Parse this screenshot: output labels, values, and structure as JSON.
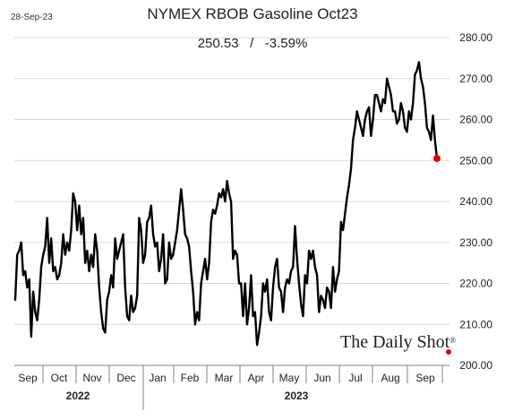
{
  "header": {
    "date_stamp": "28-Sep-23",
    "title": "NYMEX RBOB Gasoline Oct23",
    "last_value": "250.53",
    "separator": "/",
    "change": "-3.59%"
  },
  "brand": {
    "name": "The Daily Shot",
    "mark": "®"
  },
  "colors": {
    "line": "#000000",
    "last_point": "#e00000",
    "grid": "#d9d9d9",
    "axis": "#808080"
  },
  "chart_data": {
    "type": "line",
    "title": "NYMEX RBOB Gasoline Oct23",
    "xlabel": "",
    "ylabel": "",
    "ylim": [
      200,
      280
    ],
    "yticks": [
      "200.00",
      "210.00",
      "220.00",
      "230.00",
      "240.00",
      "250.00",
      "260.00",
      "270.00",
      "280.00"
    ],
    "y_axis_side": "right",
    "grid": true,
    "month_labels": [
      "Sep",
      "Oct",
      "Nov",
      "Dec",
      "Jan",
      "Feb",
      "Mar",
      "Apr",
      "May",
      "Jun",
      "Jul",
      "Aug",
      "Sep"
    ],
    "year_labels": [
      "2022",
      "2023"
    ],
    "last_point_marker": true,
    "series": [
      {
        "values": [
          216,
          227,
          228,
          230,
          222,
          223,
          219,
          221,
          207,
          218,
          213,
          211,
          216,
          224,
          227,
          229,
          236,
          225,
          231,
          223,
          224,
          221,
          222,
          225,
          232,
          227,
          230,
          228,
          233,
          242,
          240,
          233,
          239,
          232,
          236,
          225,
          228,
          223,
          227,
          224,
          232,
          228,
          219,
          213,
          209,
          208,
          216,
          218,
          222,
          219,
          231,
          226,
          228,
          230,
          232,
          219,
          212,
          211,
          217,
          213,
          214,
          217,
          236,
          233,
          225,
          227,
          235,
          236,
          239,
          232,
          229,
          230,
          223,
          226,
          232,
          220,
          221,
          230,
          226,
          227,
          230,
          233,
          238,
          243,
          238,
          232,
          231,
          229,
          223,
          218,
          210,
          213,
          211,
          220,
          223,
          226,
          221,
          225,
          235,
          238,
          237,
          239,
          242,
          241,
          243,
          240,
          245,
          242,
          240,
          226,
          228,
          227,
          220,
          220,
          212,
          220,
          210,
          214,
          222,
          212,
          213,
          205,
          208,
          212,
          220,
          218,
          221,
          213,
          211,
          219,
          224,
          226,
          219,
          218,
          213,
          219,
          221,
          220,
          223,
          224,
          234,
          226,
          220,
          215,
          212,
          222,
          220,
          228,
          226,
          228,
          224,
          222,
          213,
          217,
          216,
          214,
          219,
          218,
          214,
          224,
          218,
          221,
          223,
          235,
          233,
          237,
          241,
          244,
          248,
          255,
          258,
          262,
          260,
          258,
          256,
          260,
          262,
          263,
          256,
          260,
          266,
          266,
          264,
          262,
          265,
          264,
          270,
          268,
          266,
          262,
          262,
          259,
          260,
          264,
          262,
          258,
          257,
          262,
          260,
          264,
          271,
          272,
          274,
          270,
          268,
          264,
          258,
          257,
          255,
          261,
          255,
          250.5
        ]
      }
    ]
  }
}
